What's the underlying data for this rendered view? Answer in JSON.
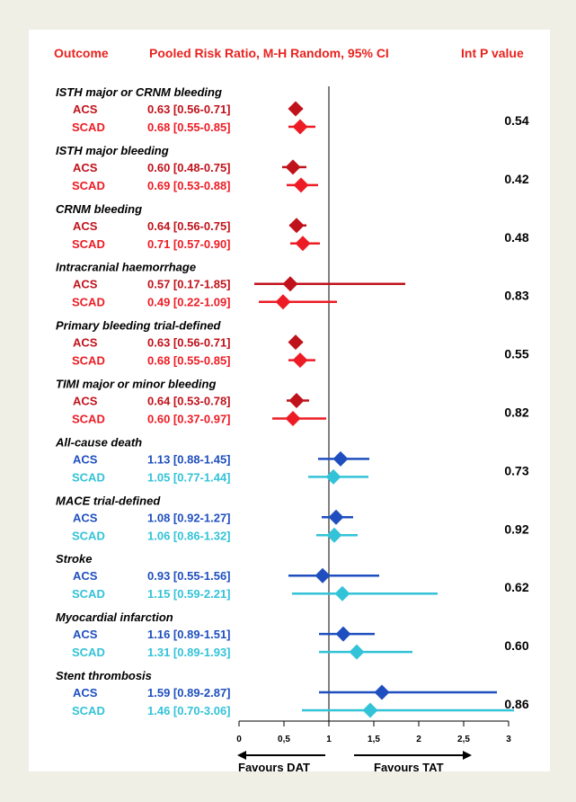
{
  "header": {
    "outcome": "Outcome",
    "method": "Pooled Risk Ratio, M-H Random, 95% CI",
    "interaction": "Int P value"
  },
  "chart_data": {
    "type": "forest",
    "title": "",
    "axis": {
      "min": 0,
      "max": 3,
      "reference": 1,
      "ticks": [
        "0",
        "0,5",
        "1",
        "1,5",
        "2",
        "2,5",
        "3"
      ],
      "tick_values": [
        0,
        0.5,
        1,
        1.5,
        2,
        2.5,
        3
      ],
      "left_label": "Favours DAT",
      "right_label": "Favours TAT"
    },
    "colors": {
      "bleeding_acs": "#c0121b",
      "bleeding_scad": "#ed1c24",
      "ischemic_acs": "#1f4fbf",
      "ischemic_scad": "#33c3d8",
      "header": "#e8231f"
    },
    "outcomes": [
      {
        "name": "ISTH major or CRNM bleeding",
        "p": "0.54",
        "group": "bleeding",
        "rows": [
          {
            "label": "ACS",
            "ci_text": "0.63 [0.56-0.71]",
            "rr": 0.63,
            "lo": 0.56,
            "hi": 0.71
          },
          {
            "label": "SCAD",
            "ci_text": "0.68 [0.55-0.85]",
            "rr": 0.68,
            "lo": 0.55,
            "hi": 0.85
          }
        ]
      },
      {
        "name": "ISTH major bleeding",
        "p": "0.42",
        "group": "bleeding",
        "rows": [
          {
            "label": "ACS",
            "ci_text": "0.60 [0.48-0.75]",
            "rr": 0.6,
            "lo": 0.48,
            "hi": 0.75
          },
          {
            "label": "SCAD",
            "ci_text": "0.69 [0.53-0.88]",
            "rr": 0.69,
            "lo": 0.53,
            "hi": 0.88
          }
        ]
      },
      {
        "name": "CRNM bleeding",
        "p": "0.48",
        "group": "bleeding",
        "rows": [
          {
            "label": "ACS",
            "ci_text": "0.64 [0.56-0.75]",
            "rr": 0.64,
            "lo": 0.56,
            "hi": 0.75
          },
          {
            "label": "SCAD",
            "ci_text": "0.71 [0.57-0.90]",
            "rr": 0.71,
            "lo": 0.57,
            "hi": 0.9
          }
        ]
      },
      {
        "name": "Intracranial haemorrhage",
        "p": "0.83",
        "group": "bleeding",
        "rows": [
          {
            "label": "ACS",
            "ci_text": "0.57 [0.17-1.85]",
            "rr": 0.57,
            "lo": 0.17,
            "hi": 1.85
          },
          {
            "label": "SCAD",
            "ci_text": "0.49 [0.22-1.09]",
            "rr": 0.49,
            "lo": 0.22,
            "hi": 1.09
          }
        ]
      },
      {
        "name": "Primary bleeding trial-defined",
        "p": "0.55",
        "group": "bleeding",
        "rows": [
          {
            "label": "ACS",
            "ci_text": "0.63 [0.56-0.71]",
            "rr": 0.63,
            "lo": 0.56,
            "hi": 0.71
          },
          {
            "label": "SCAD",
            "ci_text": "0.68 [0.55-0.85]",
            "rr": 0.68,
            "lo": 0.55,
            "hi": 0.85
          }
        ]
      },
      {
        "name": "TIMI major or minor bleeding",
        "p": "0.82",
        "group": "bleeding",
        "rows": [
          {
            "label": "ACS",
            "ci_text": "0.64 [0.53-0.78]",
            "rr": 0.64,
            "lo": 0.53,
            "hi": 0.78
          },
          {
            "label": "SCAD",
            "ci_text": "0.60 [0.37-0.97]",
            "rr": 0.6,
            "lo": 0.37,
            "hi": 0.97
          }
        ]
      },
      {
        "name": "All-cause death",
        "p": "0.73",
        "group": "ischemic",
        "rows": [
          {
            "label": "ACS",
            "ci_text": "1.13 [0.88-1.45]",
            "rr": 1.13,
            "lo": 0.88,
            "hi": 1.45
          },
          {
            "label": "SCAD",
            "ci_text": "1.05 [0.77-1.44]",
            "rr": 1.05,
            "lo": 0.77,
            "hi": 1.44
          }
        ]
      },
      {
        "name": "MACE trial-defined",
        "p": "0.92",
        "group": "ischemic",
        "rows": [
          {
            "label": "ACS",
            "ci_text": "1.08 [0.92-1.27]",
            "rr": 1.08,
            "lo": 0.92,
            "hi": 1.27
          },
          {
            "label": "SCAD",
            "ci_text": "1.06 [0.86-1.32]",
            "rr": 1.06,
            "lo": 0.86,
            "hi": 1.32
          }
        ]
      },
      {
        "name": "Stroke",
        "p": "0.62",
        "group": "ischemic",
        "rows": [
          {
            "label": "ACS",
            "ci_text": "0.93 [0.55-1.56]",
            "rr": 0.93,
            "lo": 0.55,
            "hi": 1.56
          },
          {
            "label": "SCAD",
            "ci_text": "1.15 [0.59-2.21]",
            "rr": 1.15,
            "lo": 0.59,
            "hi": 2.21
          }
        ]
      },
      {
        "name": "Myocardial infarction",
        "p": "0.60",
        "group": "ischemic",
        "rows": [
          {
            "label": "ACS",
            "ci_text": "1.16 [0.89-1.51]",
            "rr": 1.16,
            "lo": 0.89,
            "hi": 1.51
          },
          {
            "label": "SCAD",
            "ci_text": "1.31 [0.89-1.93]",
            "rr": 1.31,
            "lo": 0.89,
            "hi": 1.93
          }
        ]
      },
      {
        "name": "Stent thrombosis",
        "p": "0.86",
        "group": "ischemic",
        "rows": [
          {
            "label": "ACS",
            "ci_text": "1.59 [0.89-2.87]",
            "rr": 1.59,
            "lo": 0.89,
            "hi": 2.87
          },
          {
            "label": "SCAD",
            "ci_text": "1.46 [0.70-3.06]",
            "rr": 1.46,
            "lo": 0.7,
            "hi": 3.06
          }
        ]
      }
    ]
  }
}
